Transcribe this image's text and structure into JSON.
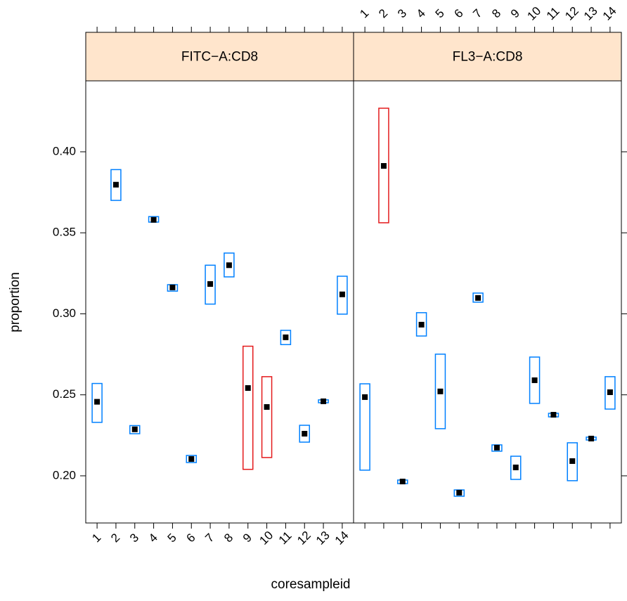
{
  "chart_data": {
    "type": "interval",
    "xlabel": "coresampleid",
    "ylabel": "proportion",
    "categories": [
      "1",
      "2",
      "3",
      "4",
      "5",
      "6",
      "7",
      "8",
      "9",
      "10",
      "11",
      "12",
      "13",
      "14"
    ],
    "xlim": [
      0.4,
      14.6
    ],
    "ylim": [
      0.1709,
      0.4438
    ],
    "yticks": [
      {
        "value": 0.2,
        "label": "0.20"
      },
      0.25,
      {
        "value": 0.3,
        "label": "0.30"
      },
      0.35,
      {
        "value": 0.4,
        "label": "0.40"
      }
    ],
    "strip_color": "#ffe5cc",
    "point_color": "#000000",
    "panels": [
      {
        "title": "FITC−A:CD8",
        "values": [
          0.2457,
          0.3797,
          0.2287,
          0.358,
          0.3163,
          0.2104,
          0.3184,
          0.33,
          0.2542,
          0.2425,
          0.2855,
          0.226,
          0.246,
          0.312
        ],
        "lower": [
          0.233,
          0.37,
          0.226,
          0.3566,
          0.314,
          0.2082,
          0.306,
          0.3228,
          0.204,
          0.2113,
          0.281,
          0.2208,
          0.2451,
          0.2998
        ],
        "upper": [
          0.257,
          0.389,
          0.231,
          0.36,
          0.318,
          0.2126,
          0.33,
          0.3375,
          0.28,
          0.2612,
          0.2898,
          0.2312,
          0.2469,
          0.3232
        ],
        "colors": [
          "#0080ff",
          "#0080ff",
          "#0080ff",
          "#0080ff",
          "#0080ff",
          "#0080ff",
          "#0080ff",
          "#0080ff",
          "#e41a1c",
          "#e41a1c",
          "#0080ff",
          "#0080ff",
          "#0080ff",
          "#0080ff"
        ]
      },
      {
        "title": "FL3−A:CD8",
        "values": [
          0.2486,
          0.3913,
          0.1965,
          0.2933,
          0.2521,
          0.1896,
          0.3098,
          0.2174,
          0.2052,
          0.259,
          0.2377,
          0.2091,
          0.223,
          0.2516
        ],
        "lower": [
          0.2035,
          0.3562,
          0.1952,
          0.2863,
          0.2291,
          0.1874,
          0.3072,
          0.2152,
          0.1978,
          0.2447,
          0.2364,
          0.197,
          0.2221,
          0.2412
        ],
        "upper": [
          0.2568,
          0.4269,
          0.1974,
          0.3007,
          0.2751,
          0.1913,
          0.3128,
          0.2191,
          0.2121,
          0.2733,
          0.2386,
          0.2204,
          0.2239,
          0.2612
        ],
        "colors": [
          "#0080ff",
          "#e41a1c",
          "#0080ff",
          "#0080ff",
          "#0080ff",
          "#0080ff",
          "#0080ff",
          "#0080ff",
          "#0080ff",
          "#0080ff",
          "#0080ff",
          "#0080ff",
          "#0080ff",
          "#0080ff"
        ]
      }
    ]
  }
}
